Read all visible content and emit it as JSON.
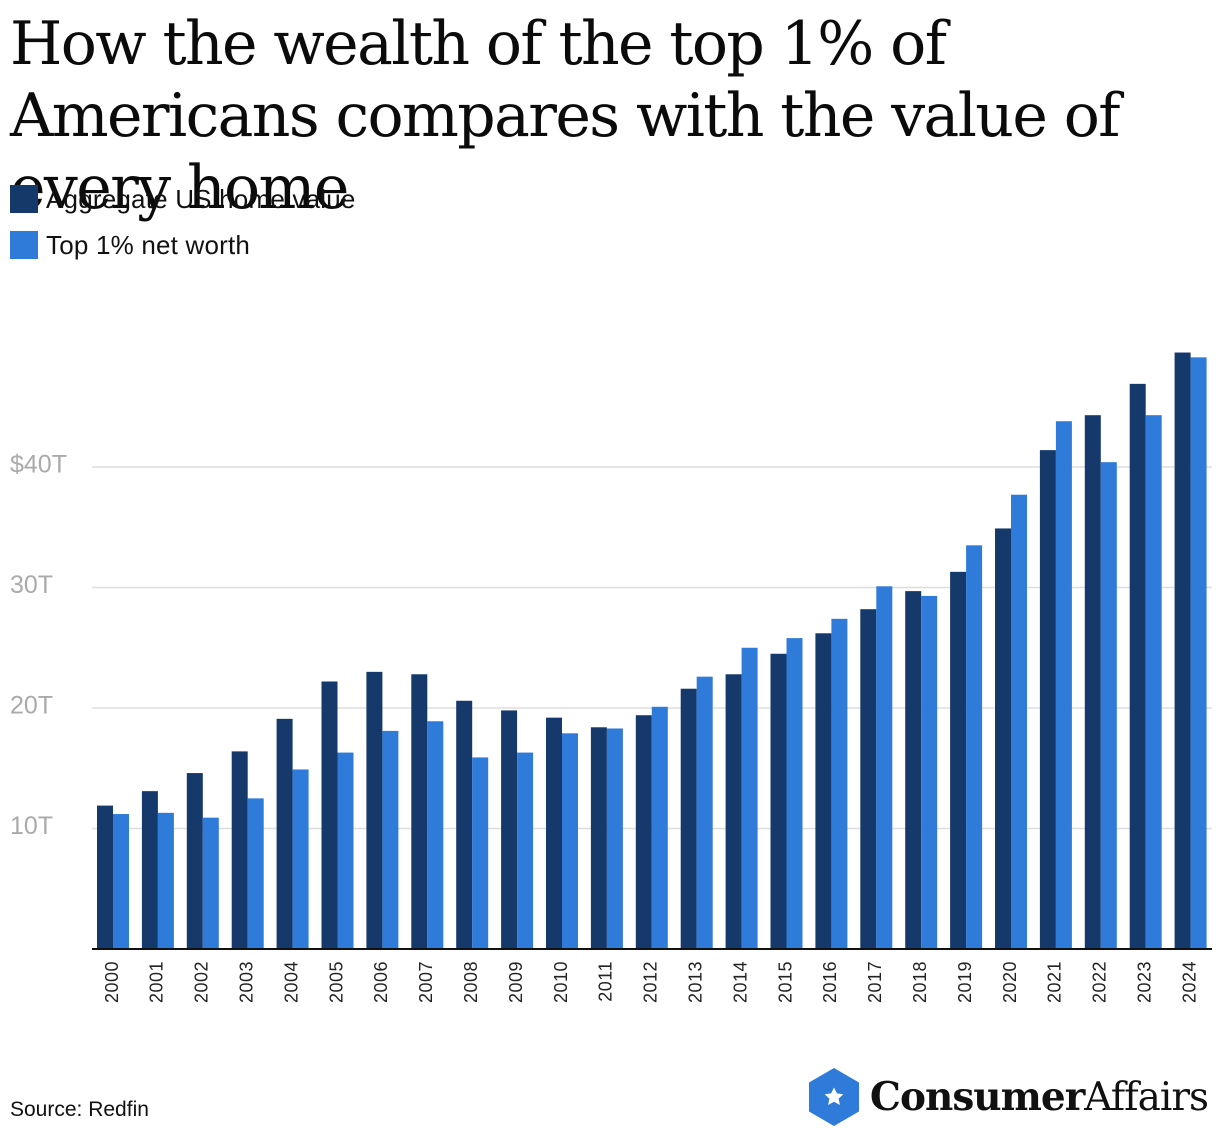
{
  "title": "How the wealth of the top 1% of Americans compares with the value of every home",
  "legend": [
    {
      "label": "Aggregate US home value",
      "color": "#15396a"
    },
    {
      "label": "Top 1% net worth",
      "color": "#2f7bd9"
    }
  ],
  "source": "Source: Redfin",
  "brand": {
    "icon": "star-hexagon-icon",
    "name_bold": "Consumer",
    "name_regular": "Affairs",
    "color": "#2f7bd9"
  },
  "colors": {
    "home_value": "#15396a",
    "top1": "#2f7bd9",
    "grid": "#dddddd",
    "axis": "#111111",
    "tick_text": "#aaaaaa"
  },
  "chart_data": {
    "type": "bar",
    "title": "How the wealth of the top 1% of Americans compares with the value of every home",
    "xlabel": "",
    "ylabel": "",
    "ylim": [
      0,
      50
    ],
    "y_ticks": [
      {
        "value": 10,
        "label": "10T"
      },
      {
        "value": 20,
        "label": "20T"
      },
      {
        "value": 30,
        "label": "30T"
      },
      {
        "value": 40,
        "label": "$40T"
      }
    ],
    "grid": true,
    "legend_position": "top-left",
    "categories": [
      "2000",
      "2001",
      "2002",
      "2003",
      "2004",
      "2005",
      "2006",
      "2007",
      "2008",
      "2009",
      "2010",
      "2011",
      "2012",
      "2013",
      "2014",
      "2015",
      "2016",
      "2017",
      "2018",
      "2019",
      "2020",
      "2021",
      "2022",
      "2023",
      "2024"
    ],
    "series": [
      {
        "name": "Aggregate US home value",
        "values": [
          11.9,
          13.1,
          14.6,
          16.4,
          19.1,
          22.2,
          23.0,
          22.8,
          20.6,
          19.8,
          19.2,
          18.4,
          19.4,
          21.6,
          22.8,
          24.5,
          26.2,
          28.2,
          29.7,
          31.3,
          34.9,
          41.4,
          44.3,
          46.9,
          49.5
        ]
      },
      {
        "name": "Top 1% net worth",
        "values": [
          11.2,
          11.3,
          10.9,
          12.5,
          14.9,
          16.3,
          18.1,
          18.9,
          15.9,
          16.3,
          17.9,
          18.3,
          20.1,
          22.6,
          25.0,
          25.8,
          27.4,
          30.1,
          29.3,
          33.5,
          37.7,
          43.8,
          40.4,
          44.3,
          49.1
        ]
      }
    ]
  }
}
